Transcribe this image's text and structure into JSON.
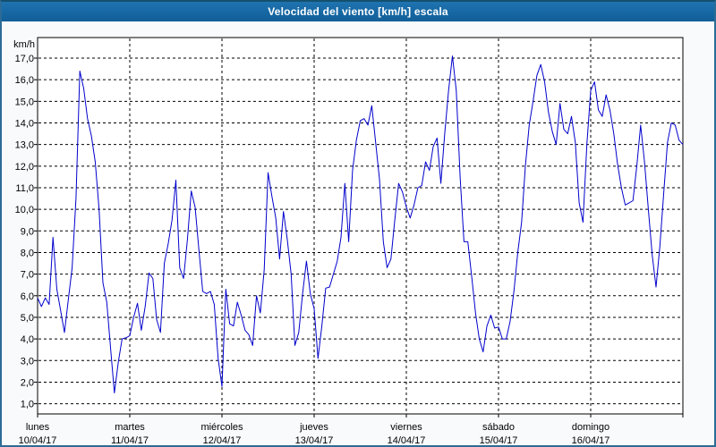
{
  "window": {
    "title": "Velocidad del viento [km/h] escala"
  },
  "colors": {
    "titlebar": "#1667a3",
    "window_border": "#2c6c96",
    "page_background": "#f8fafc",
    "plot_background": "#ffffff",
    "grid_color": "#000000",
    "line_color": "#0000cc",
    "title_text": "#ffffff",
    "axis_text": "#000000"
  },
  "chart_data": {
    "type": "line",
    "title": "Velocidad del viento [km/h] escala",
    "y_unit_label": "km/h",
    "ylabel": "km/h",
    "xlabel": "",
    "ylim": [
      1,
      17
    ],
    "ytick_step": 1,
    "ytick_labels": [
      "17,0",
      "16,0",
      "15,0",
      "14,0",
      "13,0",
      "12,0",
      "11,0",
      "10,0",
      "9,0",
      "8,0",
      "7,0",
      "6,0",
      "5,0",
      "4,0",
      "3,0",
      "2,0",
      "1,0"
    ],
    "grid": "dashed horizontal each 1.0 km/h, dashed vertical at day boundaries",
    "legend_position": "none",
    "days": [
      {
        "name": "lunes",
        "date": "10/04/17"
      },
      {
        "name": "martes",
        "date": "11/04/17"
      },
      {
        "name": "miércoles",
        "date": "12/04/17"
      },
      {
        "name": "jueves",
        "date": "13/04/17"
      },
      {
        "name": "viernes",
        "date": "14/04/17"
      },
      {
        "name": "sábado",
        "date": "15/04/17"
      },
      {
        "name": "domingo",
        "date": "16/04/17"
      }
    ],
    "samples_per_day": 24,
    "sampling": "approx. hourly wind-speed readings, 7 days, km/h",
    "series": [
      {
        "name": "velocidad del viento",
        "values": [
          5.9,
          5.5,
          5.9,
          5.6,
          8.7,
          6.3,
          5.3,
          4.3,
          5.8,
          7.3,
          10.5,
          16.4,
          15.6,
          14.2,
          13.4,
          12.2,
          10.0,
          6.6,
          5.7,
          3.6,
          1.5,
          2.9,
          4.0,
          4.05,
          4.15,
          5.0,
          5.65,
          4.4,
          5.5,
          7.05,
          6.8,
          4.9,
          4.3,
          7.5,
          8.4,
          9.5,
          11.35,
          7.3,
          6.8,
          8.6,
          10.85,
          10.1,
          8.1,
          6.2,
          6.1,
          6.2,
          5.6,
          3.1,
          1.8,
          6.3,
          4.7,
          4.6,
          5.7,
          5.1,
          4.4,
          4.2,
          3.7,
          6.0,
          5.2,
          7.2,
          11.7,
          10.6,
          9.6,
          7.7,
          9.9,
          8.6,
          7.0,
          3.7,
          4.3,
          6.1,
          7.6,
          6.1,
          5.4,
          3.1,
          4.6,
          6.35,
          6.4,
          7.0,
          7.6,
          8.7,
          11.2,
          8.5,
          11.8,
          13.2,
          14.1,
          14.2,
          13.9,
          14.8,
          13.1,
          11.4,
          8.5,
          7.3,
          7.7,
          9.5,
          11.2,
          10.8,
          10.1,
          9.6,
          10.2,
          11.0,
          11.1,
          12.2,
          11.8,
          12.9,
          13.3,
          11.2,
          13.5,
          15.5,
          17.1,
          15.5,
          11.5,
          8.5,
          8.5,
          6.9,
          5.2,
          4.0,
          3.4,
          4.6,
          5.1,
          4.5,
          4.55,
          4.0,
          4.0,
          4.8,
          6.2,
          8.0,
          9.4,
          12.0,
          13.9,
          15.0,
          16.2,
          16.7,
          15.9,
          14.5,
          13.6,
          13.0,
          14.9,
          13.7,
          13.5,
          14.3,
          13.1,
          10.3,
          9.4,
          13.0,
          15.5,
          15.9,
          14.6,
          14.3,
          15.3,
          14.6,
          13.5,
          12.1,
          11.0,
          10.2,
          10.3,
          10.4,
          12.0,
          13.9,
          12.2,
          10.0,
          7.9,
          6.4,
          8.3,
          10.7,
          13.1,
          14.0,
          13.9,
          13.2,
          13.0
        ]
      }
    ]
  }
}
